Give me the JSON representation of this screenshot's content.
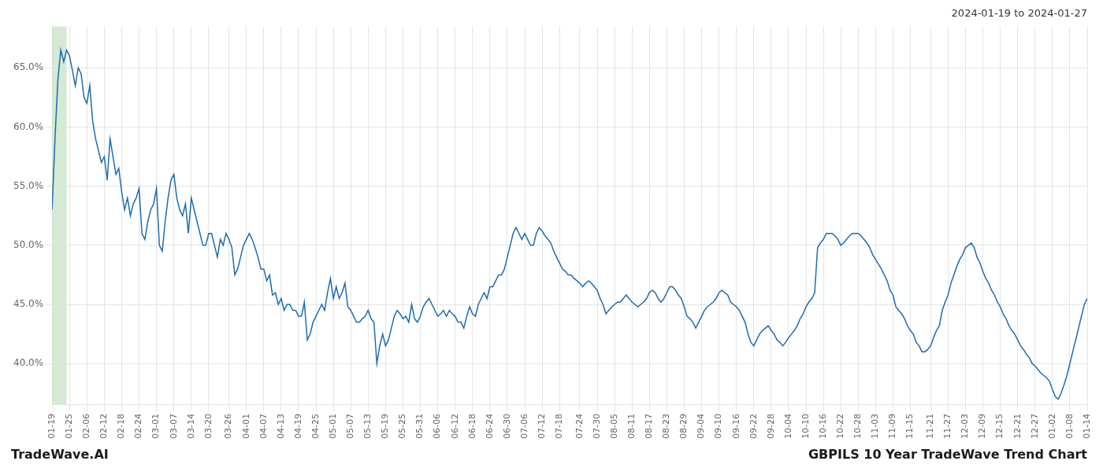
{
  "chart_data": {
    "type": "line",
    "title": "GBPILS 10 Year TradeWave Trend Chart",
    "subtitle": "2024-01-19 to 2024-01-27",
    "annotations": [
      "TradeWave.AI"
    ],
    "color": "#1f6bb0",
    "grid": true,
    "ylim": [
      0.365,
      0.685
    ],
    "yticks": [
      {
        "value": 0.4,
        "label": "40.0%"
      },
      {
        "value": 0.45,
        "label": "45.0%"
      },
      {
        "value": 0.5,
        "label": "50.0%"
      },
      {
        "value": 0.55,
        "label": "55.0%"
      },
      {
        "value": 0.6,
        "label": "60.0%"
      },
      {
        "value": 0.65,
        "label": "65.0%"
      }
    ],
    "highlight": {
      "start": 0,
      "end": 5,
      "color": "#d4ead4"
    },
    "categories": [
      "01-19",
      null,
      null,
      null,
      null,
      null,
      "01-25",
      null,
      null,
      null,
      null,
      null,
      "02-06",
      null,
      null,
      null,
      null,
      null,
      "02-12",
      null,
      null,
      null,
      null,
      null,
      "02-18",
      null,
      null,
      null,
      null,
      null,
      "02-24",
      null,
      null,
      null,
      null,
      null,
      "03-01",
      null,
      null,
      null,
      null,
      null,
      "03-07",
      null,
      null,
      null,
      null,
      null,
      "03-14",
      null,
      null,
      null,
      null,
      null,
      "03-20",
      null,
      null,
      null,
      null,
      null,
      null,
      "03-26",
      null,
      null,
      null,
      null,
      null,
      "04-01",
      null,
      null,
      null,
      null,
      null,
      "04-07",
      null,
      null,
      null,
      null,
      null,
      "04-13",
      null,
      null,
      null,
      null,
      null,
      "04-19",
      null,
      null,
      null,
      null,
      null,
      "04-25",
      null,
      null,
      null,
      null,
      null,
      "05-01",
      null,
      null,
      null,
      null,
      null,
      "05-07",
      null,
      null,
      null,
      null,
      null,
      "05-13",
      null,
      null,
      null,
      null,
      null,
      "05-19",
      null,
      null,
      null,
      null,
      null,
      "05-25",
      null,
      null,
      null,
      null,
      null,
      "05-31",
      null,
      null,
      null,
      null,
      null,
      "06-06",
      null,
      null,
      null,
      null,
      null,
      "06-12",
      null,
      null,
      null,
      null,
      null,
      "06-18",
      null,
      null,
      null,
      null,
      null,
      "06-24",
      null,
      null,
      null,
      null,
      null,
      "06-30",
      null,
      null,
      null,
      null,
      null,
      "07-06",
      null,
      null,
      null,
      null,
      null,
      "07-12",
      null,
      null,
      null,
      null,
      null,
      "07-18",
      null,
      null,
      null,
      null,
      null,
      null,
      "07-24",
      null,
      null,
      null,
      null,
      null,
      "07-30",
      null,
      null,
      null,
      null,
      null,
      "08-05",
      null,
      null,
      null,
      null,
      null,
      "08-11",
      null,
      null,
      null,
      null,
      null,
      "08-17",
      null,
      null,
      null,
      null,
      null,
      "08-23",
      null,
      null,
      null,
      null,
      null,
      "08-29",
      null,
      null,
      null,
      null,
      null,
      "09-04",
      null,
      null,
      null,
      null,
      null,
      "09-10",
      null,
      null,
      null,
      null,
      null,
      "09-16",
      null,
      null,
      null,
      null,
      null,
      "09-22",
      null,
      null,
      null,
      null,
      null,
      "09-28",
      null,
      null,
      null,
      null,
      null,
      "10-04",
      null,
      null,
      null,
      null,
      null,
      "10-10",
      null,
      null,
      null,
      null,
      null,
      "10-16",
      null,
      null,
      null,
      null,
      null,
      "10-22",
      null,
      null,
      null,
      null,
      null,
      "10-28",
      null,
      null,
      null,
      null,
      null,
      "11-03",
      null,
      null,
      null,
      null,
      null,
      "11-09",
      null,
      null,
      null,
      null,
      null,
      "11-15",
      null,
      null,
      null,
      null,
      null,
      null,
      "11-21",
      null,
      null,
      null,
      null,
      null,
      "11-27",
      null,
      null,
      null,
      null,
      null,
      "12-03",
      null,
      null,
      null,
      null,
      null,
      "12-09",
      null,
      null,
      null,
      null,
      null,
      "12-15",
      null,
      null,
      null,
      null,
      null,
      "12-21",
      null,
      null,
      null,
      null,
      null,
      "12-27",
      null,
      null,
      null,
      null,
      null,
      "01-02",
      null,
      null,
      null,
      null,
      null,
      "01-08",
      null,
      null,
      null,
      null,
      null,
      "01-14"
    ],
    "values": [
      0.53,
      0.59,
      0.64,
      0.665,
      0.655,
      0.665,
      0.66,
      0.648,
      0.635,
      0.65,
      0.645,
      0.625,
      0.62,
      0.635,
      0.605,
      0.59,
      0.58,
      0.57,
      0.575,
      0.555,
      0.59,
      0.575,
      0.56,
      0.565,
      0.545,
      0.53,
      0.54,
      0.525,
      0.535,
      0.54,
      0.548,
      0.51,
      0.505,
      0.52,
      0.53,
      0.535,
      0.548,
      0.5,
      0.495,
      0.52,
      0.54,
      0.555,
      0.56,
      0.54,
      0.53,
      0.525,
      0.535,
      0.51,
      0.54,
      0.53,
      0.52,
      0.51,
      0.5,
      0.5,
      0.51,
      0.51,
      0.5,
      0.49,
      0.505,
      0.5,
      0.51,
      0.505,
      0.498,
      0.475,
      0.48,
      0.49,
      0.5,
      0.505,
      0.51,
      0.505,
      0.498,
      0.49,
      0.48,
      0.48,
      0.47,
      0.475,
      0.458,
      0.46,
      0.45,
      0.455,
      0.445,
      0.45,
      0.45,
      0.445,
      0.445,
      0.44,
      0.44,
      0.452,
      0.42,
      0.425,
      0.435,
      0.44,
      0.445,
      0.45,
      0.445,
      0.46,
      0.472,
      0.455,
      0.465,
      0.455,
      0.46,
      0.468,
      0.448,
      0.445,
      0.44,
      0.435,
      0.435,
      0.438,
      0.44,
      0.445,
      0.438,
      0.435,
      0.4,
      0.415,
      0.425,
      0.415,
      0.42,
      0.43,
      0.44,
      0.445,
      0.442,
      0.438,
      0.44,
      0.435,
      0.45,
      0.438,
      0.435,
      0.44,
      0.448,
      0.452,
      0.455,
      0.45,
      0.445,
      0.44,
      0.442,
      0.445,
      0.44,
      0.445,
      0.442,
      0.44,
      0.435,
      0.435,
      0.43,
      0.44,
      0.448,
      0.442,
      0.44,
      0.45,
      0.455,
      0.46,
      0.455,
      0.465,
      0.465,
      0.47,
      0.475,
      0.475,
      0.48,
      0.49,
      0.5,
      0.51,
      0.515,
      0.51,
      0.505,
      0.51,
      0.505,
      0.5,
      0.5,
      0.51,
      0.515,
      0.512,
      0.508,
      0.505,
      0.502,
      0.495,
      0.49,
      0.485,
      0.48,
      0.478,
      0.475,
      0.475,
      0.472,
      0.47,
      0.468,
      0.465,
      0.468,
      0.47,
      0.468,
      0.465,
      0.462,
      0.455,
      0.45,
      0.442,
      0.445,
      0.448,
      0.45,
      0.452,
      0.452,
      0.455,
      0.458,
      0.455,
      0.452,
      0.45,
      0.448,
      0.45,
      0.452,
      0.455,
      0.46,
      0.462,
      0.46,
      0.455,
      0.452,
      0.455,
      0.46,
      0.465,
      0.465,
      0.462,
      0.458,
      0.455,
      0.448,
      0.44,
      0.438,
      0.435,
      0.43,
      0.435,
      0.44,
      0.445,
      0.448,
      0.45,
      0.452,
      0.455,
      0.46,
      0.462,
      0.46,
      0.458,
      0.452,
      0.45,
      0.448,
      0.445,
      0.44,
      0.435,
      0.425,
      0.418,
      0.415,
      0.42,
      0.425,
      0.428,
      0.43,
      0.432,
      0.428,
      0.425,
      0.42,
      0.418,
      0.415,
      0.418,
      0.422,
      0.425,
      0.428,
      0.432,
      0.438,
      0.442,
      0.448,
      0.452,
      0.455,
      0.46,
      0.498,
      0.502,
      0.505,
      0.51,
      0.51,
      0.51,
      0.508,
      0.505,
      0.5,
      0.502,
      0.505,
      0.508,
      0.51,
      0.51,
      0.51,
      0.508,
      0.505,
      0.502,
      0.498,
      0.492,
      0.488,
      0.484,
      0.48,
      0.475,
      0.47,
      0.462,
      0.458,
      0.448,
      0.445,
      0.442,
      0.438,
      0.432,
      0.428,
      0.425,
      0.418,
      0.415,
      0.41,
      0.41,
      0.412,
      0.415,
      0.422,
      0.428,
      0.432,
      0.445,
      0.452,
      0.458,
      0.468,
      0.475,
      0.482,
      0.488,
      0.492,
      0.498,
      0.5,
      0.502,
      0.498,
      0.49,
      0.485,
      0.478,
      0.472,
      0.468,
      0.462,
      0.458,
      0.452,
      0.448,
      0.442,
      0.438,
      0.432,
      0.428,
      0.425,
      0.42,
      0.415,
      0.412,
      0.408,
      0.405,
      0.4,
      0.398,
      0.395,
      0.392,
      0.39,
      0.388,
      0.385,
      0.378,
      0.372,
      0.37,
      0.375,
      0.382,
      0.39,
      0.4,
      0.41,
      0.42,
      0.43,
      0.44,
      0.45,
      0.455
    ]
  }
}
